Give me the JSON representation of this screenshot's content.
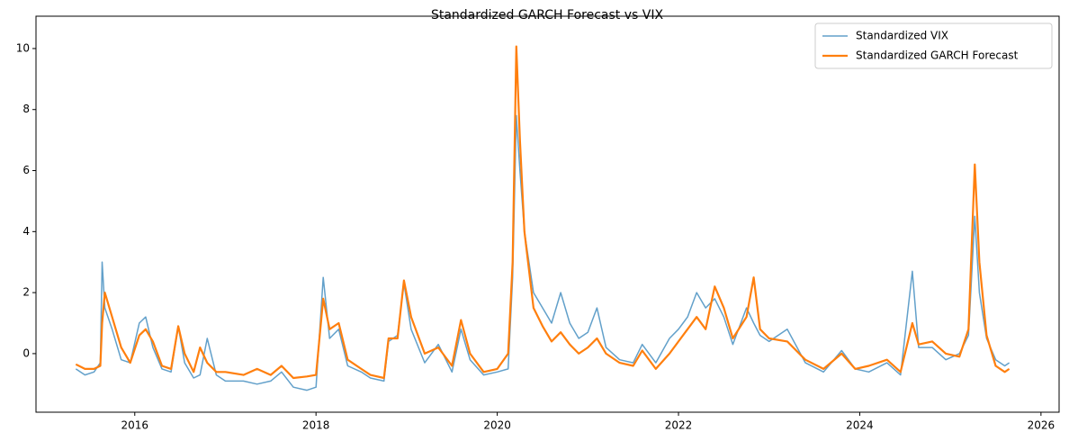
{
  "chart_data": {
    "type": "line",
    "title": "Standardized GARCH Forecast vs VIX",
    "x": [
      2015.35,
      2015.45,
      2015.55,
      2015.62,
      2015.64,
      2015.67,
      2015.75,
      2015.85,
      2015.95,
      2016.05,
      2016.12,
      2016.2,
      2016.3,
      2016.4,
      2016.48,
      2016.55,
      2016.65,
      2016.72,
      2016.8,
      2016.9,
      2017.0,
      2017.2,
      2017.35,
      2017.5,
      2017.62,
      2017.75,
      2017.9,
      2018.0,
      2018.08,
      2018.15,
      2018.25,
      2018.35,
      2018.5,
      2018.6,
      2018.75,
      2018.8,
      2018.9,
      2018.97,
      2019.05,
      2019.2,
      2019.35,
      2019.5,
      2019.6,
      2019.7,
      2019.85,
      2020.0,
      2020.12,
      2020.17,
      2020.21,
      2020.25,
      2020.3,
      2020.4,
      2020.5,
      2020.6,
      2020.7,
      2020.8,
      2020.9,
      2021.0,
      2021.1,
      2021.2,
      2021.35,
      2021.5,
      2021.6,
      2021.75,
      2021.9,
      2022.0,
      2022.1,
      2022.2,
      2022.3,
      2022.4,
      2022.5,
      2022.6,
      2022.75,
      2022.83,
      2022.9,
      2023.0,
      2023.2,
      2023.4,
      2023.6,
      2023.8,
      2023.95,
      2024.1,
      2024.3,
      2024.45,
      2024.58,
      2024.65,
      2024.8,
      2024.95,
      2025.1,
      2025.2,
      2025.27,
      2025.32,
      2025.4,
      2025.5,
      2025.6,
      2025.65
    ],
    "series": [
      {
        "name": "Standardized VIX",
        "color": "#1f77b4",
        "values": [
          -0.5,
          -0.7,
          -0.6,
          -0.3,
          3.0,
          1.5,
          0.8,
          -0.2,
          -0.3,
          1.0,
          1.2,
          0.2,
          -0.5,
          -0.6,
          0.9,
          -0.3,
          -0.8,
          -0.7,
          0.5,
          -0.7,
          -0.9,
          -0.9,
          -1.0,
          -0.9,
          -0.6,
          -1.1,
          -1.2,
          -1.1,
          2.5,
          0.5,
          0.8,
          -0.4,
          -0.6,
          -0.8,
          -0.9,
          0.4,
          0.6,
          2.3,
          0.8,
          -0.3,
          0.3,
          -0.6,
          0.8,
          -0.2,
          -0.7,
          -0.6,
          -0.5,
          2.5,
          7.8,
          6.0,
          4.0,
          2.0,
          1.5,
          1.0,
          2.0,
          1.0,
          0.5,
          0.7,
          1.5,
          0.2,
          -0.2,
          -0.3,
          0.3,
          -0.3,
          0.5,
          0.8,
          1.2,
          2.0,
          1.5,
          1.8,
          1.2,
          0.3,
          1.5,
          1.0,
          0.6,
          0.4,
          0.8,
          -0.3,
          -0.6,
          0.1,
          -0.5,
          -0.6,
          -0.3,
          -0.7,
          2.7,
          0.2,
          0.2,
          -0.2,
          0.0,
          0.6,
          4.5,
          2.0,
          0.5,
          -0.2,
          -0.4,
          -0.3
        ]
      },
      {
        "name": "Standardized GARCH Forecast",
        "color": "#ff7f0e",
        "values": [
          -0.35,
          -0.5,
          -0.5,
          -0.4,
          1.0,
          2.0,
          1.2,
          0.2,
          -0.3,
          0.6,
          0.8,
          0.4,
          -0.4,
          -0.5,
          0.9,
          0.0,
          -0.6,
          0.2,
          -0.3,
          -0.6,
          -0.6,
          -0.7,
          -0.5,
          -0.7,
          -0.4,
          -0.8,
          -0.75,
          -0.7,
          1.8,
          0.8,
          1.0,
          -0.2,
          -0.5,
          -0.7,
          -0.8,
          0.5,
          0.5,
          2.4,
          1.2,
          0.0,
          0.2,
          -0.4,
          1.1,
          0.0,
          -0.6,
          -0.5,
          0.0,
          3.0,
          10.07,
          7.0,
          4.0,
          1.5,
          0.9,
          0.4,
          0.7,
          0.3,
          0.0,
          0.2,
          0.5,
          0.0,
          -0.3,
          -0.4,
          0.1,
          -0.5,
          0.0,
          0.4,
          0.8,
          1.2,
          0.8,
          2.2,
          1.5,
          0.5,
          1.2,
          2.5,
          0.8,
          0.5,
          0.4,
          -0.2,
          -0.5,
          0.0,
          -0.5,
          -0.4,
          -0.2,
          -0.6,
          1.0,
          0.3,
          0.4,
          0.0,
          -0.1,
          0.8,
          6.2,
          3.0,
          0.6,
          -0.4,
          -0.6,
          -0.5
        ]
      }
    ],
    "xlim": [
      2014.91,
      2026.2
    ],
    "xticks": [
      2016,
      2018,
      2020,
      2022,
      2024,
      2026
    ],
    "ylim": [
      -1.92,
      11.06
    ],
    "yticks": [
      0,
      2,
      4,
      6,
      8,
      10
    ],
    "legend": "upper right"
  }
}
